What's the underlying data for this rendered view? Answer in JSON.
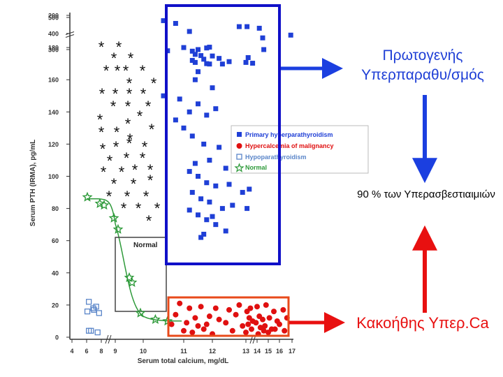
{
  "chart_data": {
    "type": "scatter",
    "xlabel": "Serum total calcium, mg/dL",
    "ylabel": "Serum PTH (IRMA), pg/mL",
    "x_ticks": [
      "4",
      "6",
      "8",
      "9",
      "10",
      "11",
      "12",
      "13",
      "14",
      "15",
      "16",
      "17"
    ],
    "y_ticks": [
      "0",
      "20",
      "40",
      "60",
      "80",
      "100",
      "120",
      "140",
      "160",
      "180",
      "200",
      "300",
      "400",
      "500"
    ],
    "x_breaks": [
      8,
      13
    ],
    "y_break": [
      200,
      300
    ],
    "normal_box_label": "Normal",
    "legend": [
      {
        "label": "Primary hyperparathyroidism",
        "marker": "filled-square",
        "color": "#1f3fd6"
      },
      {
        "label": "Hypercalcemia of malignancy",
        "marker": "filled-circle",
        "color": "#e01010"
      },
      {
        "label": "Hypoparathyroidism",
        "marker": "open-square",
        "color": "#5b86c9"
      },
      {
        "label": "Normal",
        "marker": "star",
        "color": "#2e9a3a"
      }
    ],
    "series": [
      {
        "name": "Normal",
        "points": [
          [
            6.1,
            87
          ],
          [
            7.8,
            83
          ],
          [
            8.2,
            82
          ],
          [
            8.9,
            74
          ],
          [
            9.1,
            67
          ],
          [
            9.5,
            37
          ],
          [
            9.6,
            34
          ],
          [
            9.9,
            15
          ],
          [
            10.3,
            11
          ],
          [
            10.6,
            10
          ]
        ]
      },
      {
        "name": "Hypoparathyroidism",
        "points": [
          [
            6.3,
            22
          ],
          [
            7.3,
            19
          ],
          [
            6.9,
            18
          ],
          [
            6.1,
            16
          ],
          [
            7.0,
            17
          ],
          [
            7.7,
            15
          ],
          [
            6.3,
            4
          ],
          [
            6.6,
            4
          ],
          [
            7.5,
            3
          ]
        ]
      },
      {
        "name": "Primary hyperparathyroidism",
        "points": [
          [
            10.5,
            480
          ],
          [
            11.3,
            290
          ],
          [
            11.5,
            300
          ],
          [
            11.8,
            310
          ],
          [
            11.4,
            270
          ],
          [
            11.9,
            315
          ],
          [
            11.7,
            240
          ],
          [
            12.0,
            260
          ],
          [
            11.4,
            220
          ],
          [
            12.2,
            245
          ],
          [
            12.3,
            210
          ],
          [
            11.9,
            210
          ],
          [
            12.5,
            225
          ],
          [
            13.0,
            220
          ],
          [
            14.6,
            300
          ],
          [
            16.9,
            390
          ],
          [
            13.2,
            250
          ],
          [
            13.6,
            215
          ],
          [
            10.8,
            195
          ],
          [
            11.2,
            190
          ],
          [
            12.8,
            193
          ],
          [
            13.1,
            193
          ],
          [
            14.2,
            192
          ],
          [
            14.5,
            186
          ],
          [
            10.6,
            178
          ],
          [
            11.0,
            180
          ],
          [
            11.3,
            172
          ],
          [
            11.5,
            165
          ],
          [
            11.4,
            160
          ],
          [
            11.8,
            170
          ],
          [
            12.0,
            155
          ],
          [
            11.6,
            175
          ],
          [
            10.5,
            150
          ],
          [
            10.9,
            148
          ],
          [
            11.2,
            140
          ],
          [
            10.8,
            135
          ],
          [
            11.0,
            130
          ],
          [
            11.5,
            145
          ],
          [
            11.8,
            138
          ],
          [
            12.1,
            142
          ],
          [
            11.3,
            125
          ],
          [
            11.7,
            120
          ],
          [
            12.2,
            118
          ],
          [
            11.9,
            110
          ],
          [
            12.4,
            105
          ],
          [
            11.4,
            108
          ],
          [
            11.2,
            103
          ],
          [
            11.5,
            100
          ],
          [
            11.8,
            96
          ],
          [
            12.1,
            94
          ],
          [
            11.3,
            90
          ],
          [
            11.6,
            86
          ],
          [
            11.9,
            84
          ],
          [
            12.3,
            80
          ],
          [
            11.2,
            79
          ],
          [
            11.5,
            76
          ],
          [
            11.8,
            73
          ],
          [
            12.1,
            70
          ],
          [
            12.4,
            66
          ],
          [
            11.6,
            62
          ],
          [
            12.0,
            75
          ],
          [
            12.6,
            82
          ],
          [
            12.9,
            90
          ],
          [
            13.3,
            92
          ],
          [
            12.5,
            95
          ],
          [
            13.1,
            80
          ],
          [
            11.7,
            64
          ]
        ]
      },
      {
        "name": "Hypercalcemia of malignancy",
        "points": [
          [
            10.9,
            21
          ],
          [
            11.2,
            18
          ],
          [
            11.6,
            19
          ],
          [
            12.1,
            18
          ],
          [
            12.5,
            17
          ],
          [
            13.1,
            16
          ],
          [
            13.4,
            18
          ],
          [
            14.0,
            19
          ],
          [
            14.8,
            20
          ],
          [
            15.5,
            16
          ],
          [
            16.3,
            17
          ],
          [
            12.8,
            20
          ],
          [
            10.8,
            14
          ],
          [
            11.4,
            12
          ],
          [
            11.9,
            13
          ],
          [
            12.2,
            11
          ],
          [
            12.7,
            14
          ],
          [
            13.3,
            12
          ],
          [
            13.6,
            10
          ],
          [
            14.2,
            13
          ],
          [
            14.5,
            11
          ],
          [
            15.1,
            12
          ],
          [
            15.8,
            10
          ],
          [
            16.6,
            12
          ],
          [
            10.7,
            8
          ],
          [
            11.1,
            9
          ],
          [
            11.5,
            7
          ],
          [
            11.8,
            8
          ],
          [
            12.4,
            9
          ],
          [
            12.9,
            7
          ],
          [
            13.2,
            8
          ],
          [
            13.9,
            9
          ],
          [
            14.3,
            6
          ],
          [
            14.7,
            7
          ],
          [
            15.3,
            5
          ],
          [
            16.0,
            8
          ],
          [
            11.0,
            4
          ],
          [
            11.3,
            3
          ],
          [
            11.7,
            5
          ],
          [
            12.0,
            2
          ],
          [
            12.6,
            4
          ],
          [
            13.0,
            3
          ],
          [
            13.5,
            5
          ],
          [
            14.1,
            2
          ],
          [
            14.6,
            4
          ],
          [
            15.0,
            3
          ],
          [
            15.6,
            5
          ],
          [
            16.4,
            4
          ]
        ]
      }
    ]
  },
  "annotations": {
    "primary_label": "Πρωτογενής Υπερπαραθυ/σμός",
    "percent_label": "90 % των Υπερασβεστιαιμιών",
    "malignancy_label": "Κακοήθης Υπερ.Ca"
  },
  "colors": {
    "blue_box": "#1010c8",
    "red_box": "#e84a1a",
    "arrow_blue": "#1b3fe0",
    "arrow_red": "#e81010",
    "asterisk": "#111111"
  }
}
